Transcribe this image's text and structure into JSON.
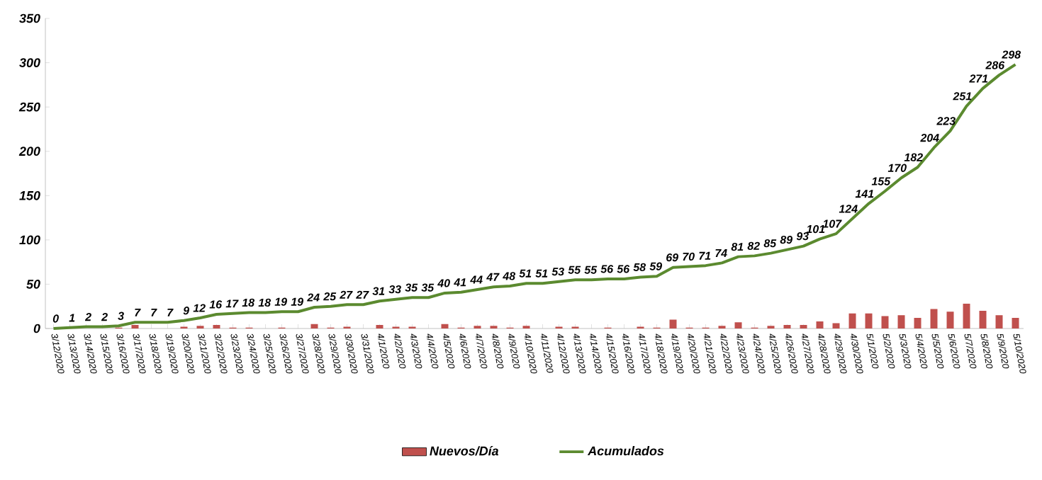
{
  "chart_data": {
    "type": "bar",
    "categories": [
      "3/12/2020",
      "3/13/2020",
      "3/14/2020",
      "3/15/2020",
      "3/16/2020",
      "3/17/2020",
      "3/18/2020",
      "3/19/2020",
      "3/20/2020",
      "3/21/2020",
      "3/22/2020",
      "3/23/2020",
      "3/24/2020",
      "3/25/2020",
      "3/26/2020",
      "3/27/2020",
      "3/28/2020",
      "3/29/2020",
      "3/30/2020",
      "3/31/2020",
      "4/1/2020",
      "4/2/2020",
      "4/3/2020",
      "4/4/2020",
      "4/5/2020",
      "4/6/2020",
      "4/7/2020",
      "4/8/2020",
      "4/9/2020",
      "4/10/2020",
      "4/11/2020",
      "4/12/2020",
      "4/13/2020",
      "4/14/2020",
      "4/15/2020",
      "4/16/2020",
      "4/17/2020",
      "4/18/2020",
      "4/19/2020",
      "4/20/2020",
      "4/21/2020",
      "4/22/2020",
      "4/23/2020",
      "4/24/2020",
      "4/25/2020",
      "4/26/2020",
      "4/27/2020",
      "4/28/2020",
      "4/29/2020",
      "4/30/2020",
      "5/1/2020",
      "5/2/2020",
      "5/3/2020",
      "5/4/2020",
      "5/5/2020",
      "5/6/2020",
      "5/7/2020",
      "5/8/2020",
      "5/9/2020",
      "5/10/2020"
    ],
    "series": [
      {
        "name": "Nuevos/Día",
        "color": "#c0504d",
        "values": [
          0,
          1,
          null,
          0,
          1,
          4,
          0,
          0,
          2,
          3,
          4,
          1,
          1,
          0,
          1,
          0,
          5,
          1,
          2,
          0,
          4,
          2,
          2,
          0,
          5,
          1,
          3,
          3,
          1,
          3,
          0,
          2,
          2,
          0,
          1,
          0,
          2,
          1,
          10,
          1,
          1,
          3,
          7,
          1,
          3,
          4,
          4,
          8,
          6,
          17,
          17,
          14,
          15,
          12,
          22,
          19,
          28,
          20,
          15,
          12
        ]
      },
      {
        "name": "Acumulados",
        "type": "line",
        "color": "#5b8a2f",
        "values": [
          0,
          1,
          2,
          2,
          3,
          7,
          7,
          7,
          9,
          12,
          16,
          17,
          18,
          18,
          19,
          19,
          24,
          25,
          27,
          27,
          31,
          33,
          35,
          35,
          40,
          41,
          44,
          47,
          48,
          51,
          51,
          53,
          55,
          55,
          56,
          56,
          58,
          59,
          69,
          70,
          71,
          74,
          81,
          82,
          85,
          89,
          93,
          101,
          107,
          124,
          141,
          155,
          170,
          182,
          204,
          223,
          251,
          271,
          286,
          298
        ],
        "value_labels": [
          "0",
          "1",
          "2",
          "2",
          "3",
          "7",
          "7",
          "7",
          "9",
          "12",
          "16",
          "17",
          "18",
          "18",
          "19",
          "19",
          "24",
          "25",
          "27",
          "27",
          "31",
          "33",
          "35",
          "35",
          "40",
          "41",
          "44",
          "47",
          "48",
          "51",
          "51",
          "53",
          "55",
          "55",
          "56",
          "56",
          "58",
          "59",
          "69",
          "70",
          "71",
          "74",
          "81",
          "82",
          "85",
          "89",
          "93",
          "101",
          "107",
          "124",
          "141",
          "155",
          "170",
          "182",
          "204",
          "223",
          "251",
          "271",
          "286",
          "298"
        ]
      }
    ],
    "ylim": [
      0,
      350
    ],
    "yticks": [
      0,
      50,
      100,
      150,
      200,
      250,
      300,
      350
    ],
    "grid": false,
    "legend": "bottom",
    "marker": "none"
  }
}
